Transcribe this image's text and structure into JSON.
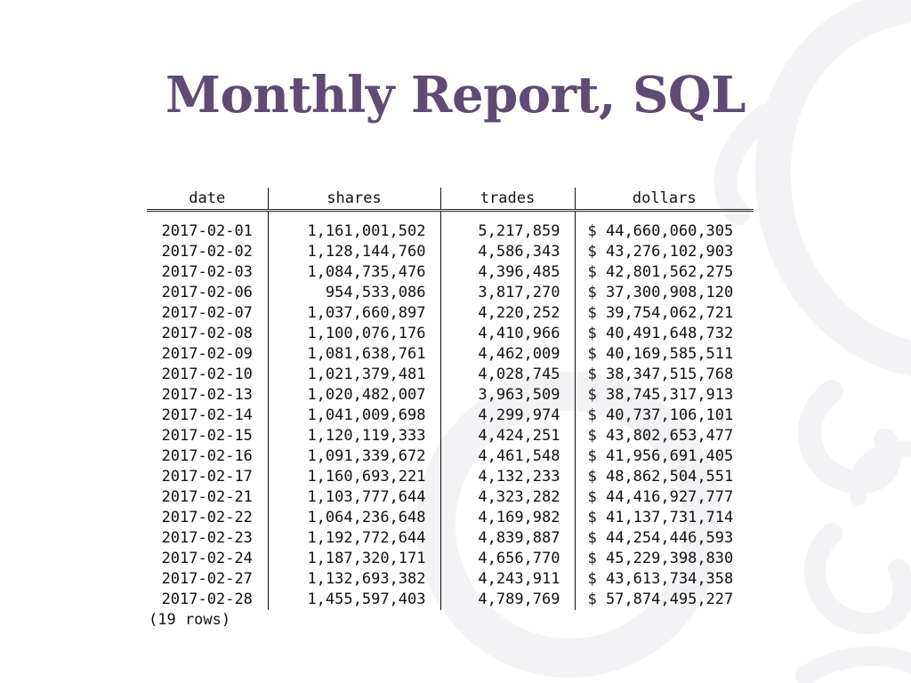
{
  "slide": {
    "title": "Monthly Report, SQL"
  },
  "table": {
    "headers": {
      "date": "date",
      "shares": "shares",
      "trades": "trades",
      "dollars": "dollars"
    },
    "rows": [
      {
        "date": "2017-02-01",
        "shares": "1,161,001,502",
        "trades": "5,217,859",
        "dollars": "$ 44,660,060,305"
      },
      {
        "date": "2017-02-02",
        "shares": "1,128,144,760",
        "trades": "4,586,343",
        "dollars": "$ 43,276,102,903"
      },
      {
        "date": "2017-02-03",
        "shares": "1,084,735,476",
        "trades": "4,396,485",
        "dollars": "$ 42,801,562,275"
      },
      {
        "date": "2017-02-06",
        "shares": "954,533,086",
        "trades": "3,817,270",
        "dollars": "$ 37,300,908,120"
      },
      {
        "date": "2017-02-07",
        "shares": "1,037,660,897",
        "trades": "4,220,252",
        "dollars": "$ 39,754,062,721"
      },
      {
        "date": "2017-02-08",
        "shares": "1,100,076,176",
        "trades": "4,410,966",
        "dollars": "$ 40,491,648,732"
      },
      {
        "date": "2017-02-09",
        "shares": "1,081,638,761",
        "trades": "4,462,009",
        "dollars": "$ 40,169,585,511"
      },
      {
        "date": "2017-02-10",
        "shares": "1,021,379,481",
        "trades": "4,028,745",
        "dollars": "$ 38,347,515,768"
      },
      {
        "date": "2017-02-13",
        "shares": "1,020,482,007",
        "trades": "3,963,509",
        "dollars": "$ 38,745,317,913"
      },
      {
        "date": "2017-02-14",
        "shares": "1,041,009,698",
        "trades": "4,299,974",
        "dollars": "$ 40,737,106,101"
      },
      {
        "date": "2017-02-15",
        "shares": "1,120,119,333",
        "trades": "4,424,251",
        "dollars": "$ 43,802,653,477"
      },
      {
        "date": "2017-02-16",
        "shares": "1,091,339,672",
        "trades": "4,461,548",
        "dollars": "$ 41,956,691,405"
      },
      {
        "date": "2017-02-17",
        "shares": "1,160,693,221",
        "trades": "4,132,233",
        "dollars": "$ 48,862,504,551"
      },
      {
        "date": "2017-02-21",
        "shares": "1,103,777,644",
        "trades": "4,323,282",
        "dollars": "$ 44,416,927,777"
      },
      {
        "date": "2017-02-22",
        "shares": "1,064,236,648",
        "trades": "4,169,982",
        "dollars": "$ 41,137,731,714"
      },
      {
        "date": "2017-02-23",
        "shares": "1,192,772,644",
        "trades": "4,839,887",
        "dollars": "$ 44,254,446,593"
      },
      {
        "date": "2017-02-24",
        "shares": "1,187,320,171",
        "trades": "4,656,770",
        "dollars": "$ 45,229,398,830"
      },
      {
        "date": "2017-02-27",
        "shares": "1,132,693,382",
        "trades": "4,243,911",
        "dollars": "$ 43,613,734,358"
      },
      {
        "date": "2017-02-28",
        "shares": "1,455,597,403",
        "trades": "4,789,769",
        "dollars": "$ 57,874,495,227"
      }
    ],
    "footer": "(19 rows)"
  },
  "theme": {
    "title_color": "#5e4c75",
    "ornament_color": "#f3f2f5"
  }
}
